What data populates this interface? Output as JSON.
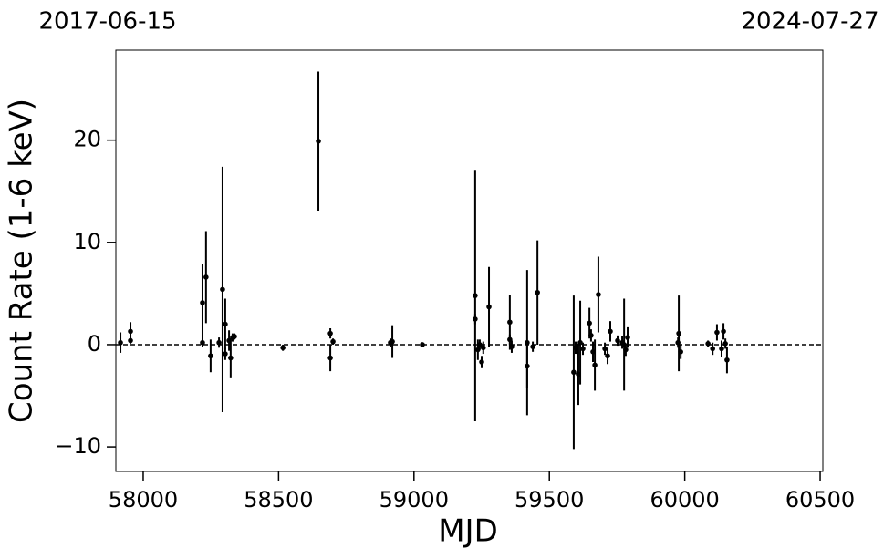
{
  "chart_data": {
    "type": "scatter",
    "annotations": [
      "2017-06-15",
      "2024-07-27"
    ],
    "xlabel": "MJD",
    "ylabel": "Count Rate (1-6 keV)",
    "xlim": [
      57899,
      60510
    ],
    "ylim": [
      -12.4,
      28.8
    ],
    "xticks": [
      58000,
      58500,
      59000,
      59500,
      60000,
      60500
    ],
    "yticks": [
      {
        "value": -10,
        "label": "−10"
      },
      0,
      10,
      20
    ],
    "reference_line": 0,
    "color": "#000000",
    "x": [
      57916,
      57953,
      57953,
      58219,
      58219,
      58232,
      58249,
      58280,
      58293,
      58303,
      58303,
      58317,
      58323,
      58330,
      58337,
      58516,
      58647,
      58691,
      58691,
      58701,
      58913,
      58920,
      59031,
      59226,
      59226,
      59236,
      59243,
      59250,
      59256,
      59277,
      59354,
      59354,
      59361,
      59418,
      59418,
      59439,
      59456,
      59590,
      59597,
      59607,
      59614,
      59624,
      59648,
      59654,
      59661,
      59668,
      59681,
      59705,
      59715,
      59725,
      59752,
      59769,
      59776,
      59782,
      59789,
      59978,
      59975,
      59985,
      60086,
      60103,
      60119,
      60136,
      60143,
      60150,
      60156
    ],
    "values": [
      0.2,
      1.3,
      0.4,
      4.1,
      0.2,
      6.6,
      -1.1,
      0.2,
      5.4,
      2.0,
      -0.9,
      0.4,
      -1.3,
      0.7,
      0.8,
      -0.3,
      19.9,
      1.1,
      -1.3,
      0.3,
      0.2,
      0.3,
      0.0,
      4.8,
      2.5,
      -0.5,
      0.0,
      -1.7,
      -0.3,
      3.7,
      2.2,
      0.5,
      -0.2,
      -2.1,
      0.2,
      -0.2,
      5.1,
      -2.7,
      -0.3,
      -2.9,
      0.2,
      -0.4,
      2.1,
      0.9,
      -0.7,
      -2.0,
      4.9,
      -0.4,
      -1.1,
      1.3,
      0.4,
      0.2,
      0.0,
      -0.5,
      0.7,
      1.1,
      0.2,
      -0.7,
      0.1,
      -0.4,
      1.2,
      -0.4,
      1.3,
      0.1,
      -1.5
    ],
    "errors": [
      1.0,
      0.9,
      0.3,
      3.8,
      0.4,
      4.5,
      1.6,
      0.5,
      12.0,
      2.5,
      0.6,
      1.0,
      1.9,
      0.4,
      0.3,
      0.3,
      6.8,
      0.5,
      1.3,
      0.3,
      0.4,
      1.6,
      0.1,
      12.3,
      0.5,
      1.0,
      0.5,
      0.6,
      0.6,
      3.9,
      2.7,
      0.5,
      0.6,
      2.1,
      7.1,
      0.5,
      5.1,
      7.5,
      0.6,
      3.0,
      4.1,
      0.6,
      1.5,
      0.6,
      1.0,
      2.5,
      3.7,
      0.6,
      0.8,
      1.0,
      0.5,
      0.6,
      4.5,
      0.6,
      1.0,
      3.7,
      0.5,
      0.7,
      0.3,
      0.6,
      0.8,
      0.8,
      0.8,
      0.5,
      1.3
    ]
  }
}
